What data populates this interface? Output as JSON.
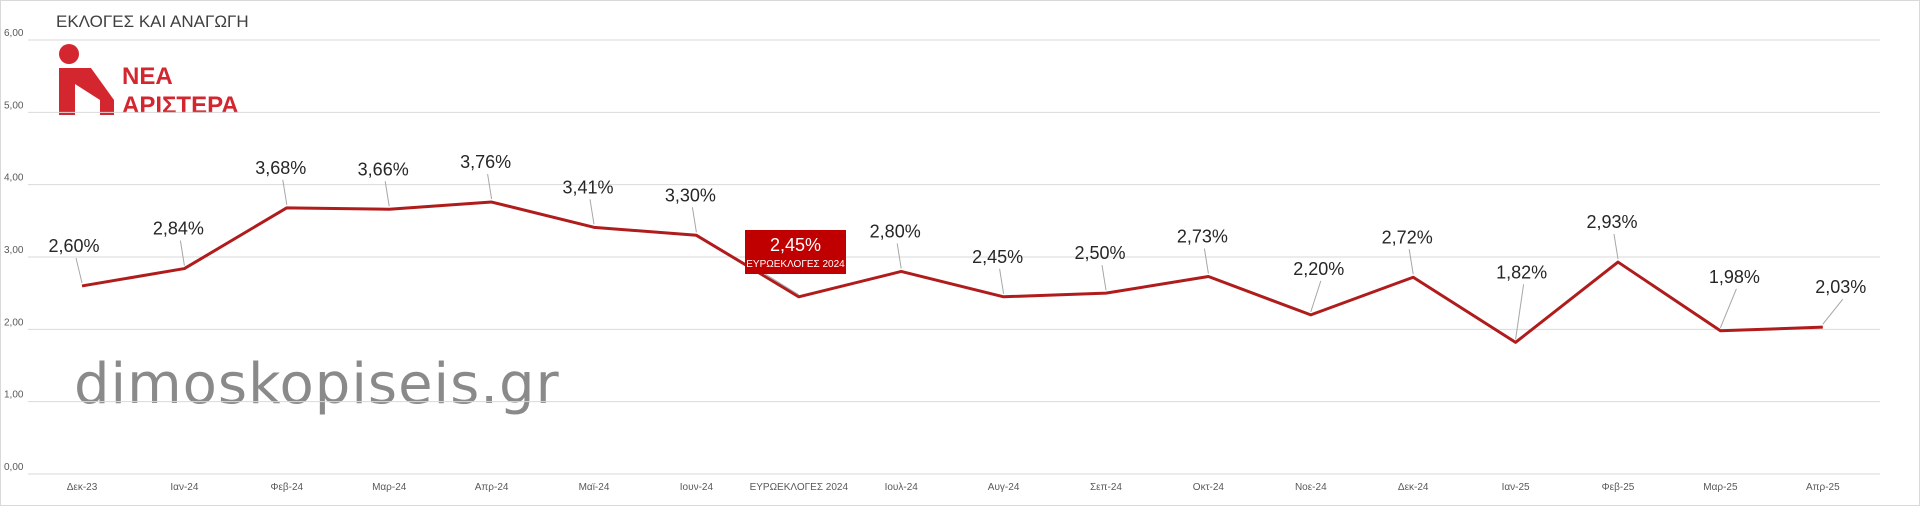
{
  "header": {
    "title": "ΕΚΛΟΓΕΣ ΚΑΙ ΑΝΑΓΩΓΗ",
    "logo_line1": "ΝΕΑ",
    "logo_line2": "ΑΡΙΣΤΕΡΑ",
    "watermark": "dimoskopiseis.gr"
  },
  "colors": {
    "line": "#b01c1c",
    "brand": "#d4262f",
    "highlight_box": "#c00000",
    "grid": "#d9d9d9"
  },
  "chart_data": {
    "type": "line",
    "categories": [
      "Δεκ-23",
      "Ιαν-24",
      "Φεβ-24",
      "Μαρ-24",
      "Απρ-24",
      "Μαϊ-24",
      "Ιουν-24",
      "ΕΥΡΩΕΚΛΟΓΕΣ 2024",
      "Ιουλ-24",
      "Αυγ-24",
      "Σεπ-24",
      "Οκτ-24",
      "Νοε-24",
      "Δεκ-24",
      "Ιαν-25",
      "Φεβ-25",
      "Μαρ-25",
      "Απρ-25"
    ],
    "values": [
      2.6,
      2.84,
      3.68,
      3.66,
      3.76,
      3.41,
      3.3,
      2.45,
      2.8,
      2.45,
      2.5,
      2.73,
      2.2,
      2.72,
      1.82,
      2.93,
      1.98,
      2.03
    ],
    "data_labels": [
      "2,60%",
      "2,84%",
      "3,68%",
      "3,66%",
      "3,76%",
      "3,41%",
      "3,30%",
      "2,45%",
      "2,80%",
      "2,45%",
      "2,50%",
      "2,73%",
      "2,20%",
      "2,72%",
      "1,82%",
      "2,93%",
      "1,98%",
      "2,03%"
    ],
    "highlight": {
      "index": 7,
      "label": "2,45%",
      "sublabel": "ΕΥΡΩΕΚΛΟΓΕΣ 2024"
    },
    "y_ticks": [
      "0,00",
      "1,00",
      "2,00",
      "3,00",
      "4,00",
      "5,00",
      "6,00"
    ],
    "ylim": [
      0,
      6
    ],
    "grid": true,
    "legend": "none"
  }
}
